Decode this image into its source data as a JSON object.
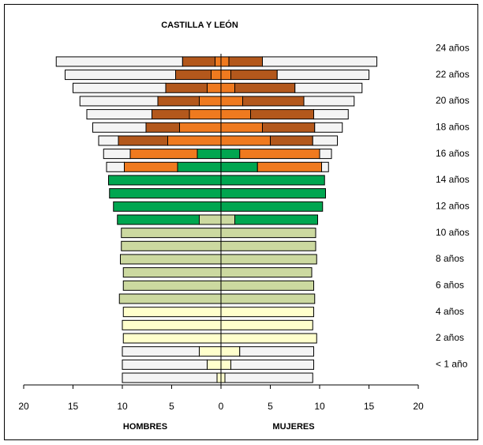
{
  "chart_data": {
    "type": "pyramid",
    "title": "CASTILLA Y LEÓN",
    "xlabel_left": "HOMBRES",
    "xlabel_right": "MUJERES",
    "categories": [
      "< 1 año",
      null,
      "2 años",
      null,
      "4 años",
      null,
      "6 años",
      null,
      "8 años",
      null,
      "10 años",
      null,
      "12 años",
      null,
      "14 años",
      null,
      "16 años",
      null,
      "18 años",
      null,
      "20 años",
      null,
      "22 años",
      null,
      "24 años"
    ],
    "xlim": [
      -20,
      20
    ],
    "xticks": [
      {
        "value": -20,
        "label": "20"
      },
      {
        "value": -15,
        "label": "15"
      },
      {
        "value": -10,
        "label": "10"
      },
      {
        "value": -5,
        "label": "5"
      },
      0,
      5,
      10,
      15,
      20
    ],
    "series": [
      {
        "color": "#ffffcc",
        "hombres": [
          0.4,
          1.4,
          2.2,
          9.9,
          10.0,
          9.9,
          0,
          0,
          0,
          0,
          0,
          0,
          0,
          0,
          0,
          0,
          0,
          0,
          0,
          0,
          0,
          0,
          0,
          0,
          0
        ],
        "mujeres": [
          0.4,
          1.0,
          1.9,
          9.7,
          9.3,
          9.4,
          0,
          0,
          0,
          0,
          0,
          0,
          0,
          0,
          0,
          0,
          0,
          0,
          0,
          0,
          0,
          0,
          0,
          0,
          0
        ]
      },
      {
        "color": "#ccd9a0",
        "hombres": [
          0,
          0,
          0,
          0,
          0,
          0,
          10.3,
          9.9,
          9.9,
          10.2,
          10.1,
          10.1,
          2.2,
          0,
          0,
          0,
          0,
          0,
          0,
          0,
          0,
          0,
          0,
          0,
          0
        ],
        "mujeres": [
          0,
          0,
          0,
          0,
          0,
          0,
          9.5,
          9.4,
          9.2,
          9.7,
          9.6,
          9.6,
          1.4,
          0,
          0,
          0,
          0,
          0,
          0,
          0,
          0,
          0,
          0,
          0,
          0
        ]
      },
      {
        "color": "#00a650",
        "hombres": [
          0,
          0,
          0,
          0,
          0,
          0,
          0,
          0,
          0,
          0,
          0,
          0,
          8.3,
          10.9,
          11.3,
          11.4,
          4.4,
          2.4,
          0,
          0,
          0,
          0,
          0,
          0,
          0
        ],
        "mujeres": [
          0,
          0,
          0,
          0,
          0,
          0,
          0,
          0,
          0,
          0,
          0,
          0,
          8.4,
          10.3,
          10.6,
          10.5,
          3.7,
          1.9,
          0,
          0,
          0,
          0,
          0,
          0,
          0
        ]
      },
      {
        "color": "#ef7a1f",
        "hombres": [
          0,
          0,
          0,
          0,
          0,
          0,
          0,
          0,
          0,
          0,
          0,
          0,
          0,
          0,
          0,
          0,
          5.4,
          6.8,
          5.4,
          4.2,
          3.2,
          2.2,
          1.4,
          1.0,
          0.6
        ],
        "mujeres": [
          0,
          0,
          0,
          0,
          0,
          0,
          0,
          0,
          0,
          0,
          0,
          0,
          0,
          0,
          0,
          0,
          6.5,
          8.1,
          5.0,
          4.2,
          3.0,
          2.2,
          1.4,
          1.0,
          0.8
        ]
      },
      {
        "color": "#b3581c",
        "hombres": [
          0,
          0,
          0,
          0,
          0,
          0,
          0,
          0,
          0,
          0,
          0,
          0,
          0,
          0,
          0,
          0,
          0,
          0,
          5.0,
          3.4,
          3.8,
          4.2,
          4.2,
          3.6,
          3.3
        ],
        "mujeres": [
          0,
          0,
          0,
          0,
          0,
          0,
          0,
          0,
          0,
          0,
          0,
          0,
          0,
          0,
          0,
          0,
          0,
          0,
          4.3,
          5.3,
          6.4,
          6.2,
          6.1,
          4.7,
          3.4
        ]
      },
      {
        "color": "#f4f4f4",
        "hombres": [
          9.6,
          8.6,
          7.8,
          0,
          0,
          0,
          0,
          0,
          0,
          0,
          0,
          0,
          0,
          0,
          0,
          0,
          1.8,
          2.7,
          2.0,
          5.4,
          6.6,
          7.9,
          9.4,
          11.2,
          12.8
        ],
        "mujeres": [
          8.9,
          8.4,
          7.5,
          0,
          0,
          0,
          0,
          0,
          0,
          0,
          0,
          0,
          0,
          0,
          0,
          0,
          0.7,
          1.2,
          2.5,
          2.8,
          3.5,
          5.1,
          6.8,
          9.3,
          11.6
        ]
      }
    ]
  }
}
